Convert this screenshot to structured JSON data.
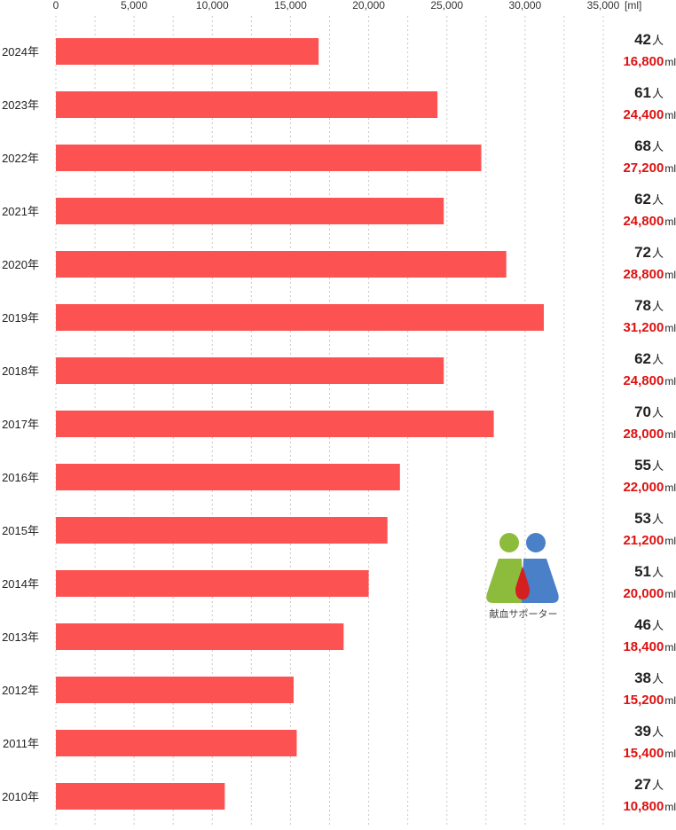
{
  "chart_data": {
    "type": "bar",
    "orientation": "horizontal",
    "unit_label": "[ml]",
    "xlim": [
      0,
      35000
    ],
    "x_ticks": [
      "0",
      "5,000",
      "10,000",
      "15,000",
      "20,000",
      "25,000",
      "30,000",
      "35,000"
    ],
    "grid": true,
    "bar_color": "#fd5252",
    "count_unit": "人",
    "volume_unit": "ml",
    "rows": [
      {
        "year": "2024年",
        "volume": 16800,
        "count": "42",
        "volume_label": "16,800"
      },
      {
        "year": "2023年",
        "volume": 24400,
        "count": "61",
        "volume_label": "24,400"
      },
      {
        "year": "2022年",
        "volume": 27200,
        "count": "68",
        "volume_label": "27,200"
      },
      {
        "year": "2021年",
        "volume": 24800,
        "count": "62",
        "volume_label": "24,800"
      },
      {
        "year": "2020年",
        "volume": 28800,
        "count": "72",
        "volume_label": "28,800"
      },
      {
        "year": "2019年",
        "volume": 31200,
        "count": "78",
        "volume_label": "31,200"
      },
      {
        "year": "2018年",
        "volume": 24800,
        "count": "62",
        "volume_label": "24,800"
      },
      {
        "year": "2017年",
        "volume": 28000,
        "count": "70",
        "volume_label": "28,000"
      },
      {
        "year": "2016年",
        "volume": 22000,
        "count": "55",
        "volume_label": "22,000"
      },
      {
        "year": "2015年",
        "volume": 21200,
        "count": "53",
        "volume_label": "21,200"
      },
      {
        "year": "2014年",
        "volume": 20000,
        "count": "51",
        "volume_label": "20,000"
      },
      {
        "year": "2013年",
        "volume": 18400,
        "count": "46",
        "volume_label": "18,400"
      },
      {
        "year": "2012年",
        "volume": 15200,
        "count": "38",
        "volume_label": "15,200"
      },
      {
        "year": "2011年",
        "volume": 15400,
        "count": "39",
        "volume_label": "15,400"
      },
      {
        "year": "2010年",
        "volume": 10800,
        "count": "27",
        "volume_label": "10,800"
      }
    ]
  },
  "logo": {
    "text": "献血サポーター",
    "left_figure_color": "#8dbb3c",
    "right_figure_color": "#4a80c8",
    "drop_color": "#d42020"
  }
}
